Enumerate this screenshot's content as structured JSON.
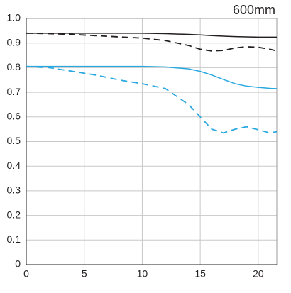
{
  "chart_data": {
    "type": "line",
    "title": "600mm",
    "x": [
      0,
      2,
      4,
      6,
      8,
      10,
      12,
      14,
      15,
      16,
      17,
      18,
      19,
      20,
      21,
      21.6
    ],
    "series": [
      {
        "color": "#231f20",
        "style": "solid",
        "values": [
          0.94,
          0.94,
          0.94,
          0.94,
          0.94,
          0.94,
          0.938,
          0.935,
          0.933,
          0.93,
          0.928,
          0.926,
          0.925,
          0.924,
          0.924,
          0.924
        ]
      },
      {
        "color": "#231f20",
        "style": "dashed",
        "values": [
          0.94,
          0.938,
          0.935,
          0.93,
          0.925,
          0.92,
          0.91,
          0.89,
          0.875,
          0.868,
          0.87,
          0.88,
          0.885,
          0.883,
          0.875,
          0.868
        ]
      },
      {
        "color": "#29a8e0",
        "style": "solid",
        "values": [
          0.805,
          0.805,
          0.805,
          0.805,
          0.805,
          0.805,
          0.803,
          0.795,
          0.785,
          0.77,
          0.752,
          0.735,
          0.725,
          0.72,
          0.716,
          0.715
        ]
      },
      {
        "color": "#29a8e0",
        "style": "dashed",
        "values": [
          0.805,
          0.8,
          0.785,
          0.77,
          0.75,
          0.735,
          0.715,
          0.65,
          0.6,
          0.55,
          0.535,
          0.55,
          0.56,
          0.548,
          0.535,
          0.54
        ]
      }
    ],
    "xlim": [
      0,
      21.6
    ],
    "xticks": [
      0,
      5,
      10,
      15,
      20
    ],
    "ylim": [
      0,
      1
    ],
    "yticks": [
      0,
      0.1,
      0.2,
      0.3,
      0.4,
      0.5,
      0.6,
      0.7,
      0.8,
      0.9,
      {
        "value": 1,
        "label": "1.0"
      }
    ],
    "grid": true
  }
}
